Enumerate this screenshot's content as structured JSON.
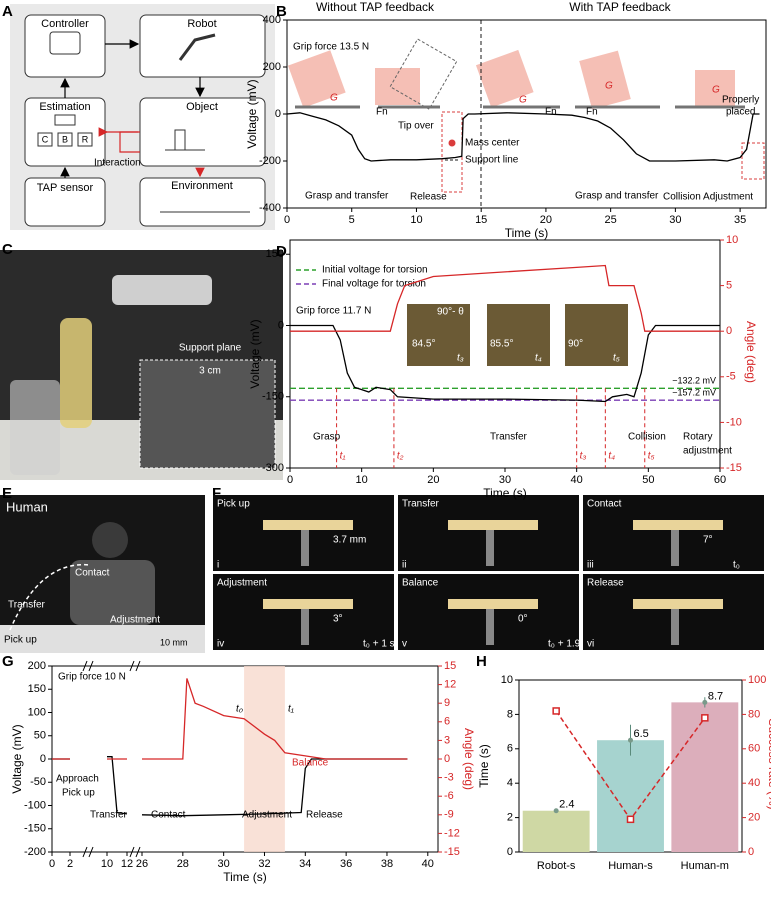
{
  "panel_labels": [
    "A",
    "B",
    "C",
    "D",
    "E",
    "F",
    "G",
    "H"
  ],
  "diagram": {
    "nodes": [
      "Controller",
      "Robot",
      "Estimation",
      "Object",
      "TAP sensor",
      "Environment"
    ],
    "sub_nodes": [
      "C",
      "B",
      "R"
    ],
    "edge_label": "Interaction"
  },
  "photos": {
    "C": [
      "Support plane",
      "3 cm"
    ],
    "E": [
      "Human",
      "Contact",
      "Transfer",
      "Adjustment",
      "Pick up",
      "10 mm"
    ],
    "F": [
      {
        "title": "Pick up",
        "numeral": "i",
        "notes": [
          "3.7 mm"
        ]
      },
      {
        "title": "Transfer",
        "numeral": "ii",
        "notes": []
      },
      {
        "title": "Contact",
        "numeral": "iii",
        "notes": [
          "7°",
          "t₀"
        ]
      },
      {
        "title": "Adjustment",
        "numeral": "iv",
        "notes": [
          "3°",
          "t₀ + 1 s"
        ]
      },
      {
        "title": "Balance",
        "numeral": "v",
        "notes": [
          "0°",
          "t₀ + 1.9 s"
        ]
      },
      {
        "title": "Release",
        "numeral": "vi",
        "notes": []
      }
    ]
  },
  "chart_data": [
    {
      "type": "line",
      "headers": [
        "Without TAP feedback",
        "With TAP feedback"
      ],
      "xlabel": "Time (s)",
      "ylabel": "Voltage (mV)",
      "xlim": [
        0,
        37
      ],
      "ylim": [
        -400,
        400
      ],
      "xticks": [
        0,
        5,
        10,
        15,
        20,
        25,
        30,
        35
      ],
      "yticks": [
        -400,
        -200,
        0,
        200,
        400
      ],
      "series": [
        {
          "color": "#000000",
          "x": [
            0,
            1,
            2,
            3,
            4,
            5,
            5.5,
            6,
            6.5,
            8,
            10,
            12,
            13,
            13.5,
            13.6,
            14,
            14.5,
            17,
            20,
            22,
            23,
            24,
            25,
            26,
            27,
            28,
            30,
            33,
            34,
            35,
            35.5,
            35.8,
            36,
            36.5
          ],
          "values": [
            0,
            5,
            -10,
            -25,
            -50,
            -90,
            -150,
            -190,
            -200,
            -195,
            -195,
            -190,
            -185,
            -180,
            -20,
            0,
            0,
            5,
            0,
            -5,
            -15,
            -30,
            -60,
            -110,
            -170,
            -200,
            -200,
            -195,
            -200,
            -185,
            -150,
            -60,
            0,
            0
          ]
        }
      ],
      "annotations": [
        "Grip force 13.5 N",
        "G",
        "Fn",
        "Tip over",
        "Mass center",
        "Support line",
        "Grasp and transfer",
        "Release",
        "G",
        "Fn",
        "Fn",
        "G",
        "G",
        "Properly",
        "placed",
        "Grasp and transfer",
        "Collision Adjustment"
      ]
    },
    {
      "type": "line",
      "xlabel": "Time (s)",
      "ylabel": "Voltage (mV)",
      "y2label": "Angle (deg)",
      "y2color": "#d62728",
      "xlim": [
        0,
        60
      ],
      "ylim": [
        -300,
        180
      ],
      "y2lim": [
        -15,
        10
      ],
      "xticks": [
        0,
        10,
        20,
        30,
        40,
        50,
        60
      ],
      "yticks": [
        -300,
        -150,
        0,
        150
      ],
      "y2ticks": [
        -15,
        -10,
        -5,
        0,
        5,
        10
      ],
      "series": [
        {
          "color": "#000000",
          "x": [
            0,
            6,
            7,
            8,
            9,
            10,
            11,
            12,
            14,
            15,
            20,
            30,
            40,
            44,
            45,
            47,
            48,
            49,
            50,
            51,
            60
          ],
          "values": [
            0,
            0,
            -30,
            -100,
            -130,
            -135,
            -140,
            -130,
            -135,
            -150,
            -155,
            -155,
            -157,
            -160,
            -150,
            -145,
            -150,
            -100,
            -20,
            0,
            0
          ]
        },
        {
          "color": "#d62728",
          "axis": "y2",
          "x": [
            0,
            14,
            15,
            16,
            20,
            30,
            40,
            44,
            44.5,
            48,
            49,
            49.5,
            60
          ],
          "values": [
            0,
            0,
            3,
            5,
            6,
            6.5,
            7,
            7.2,
            5,
            5,
            2,
            0,
            0
          ]
        }
      ],
      "hlines": [
        {
          "name": "Initial voltage for torsion",
          "color": "#2ca02c",
          "value": -132.2,
          "label": "−132.2 mV"
        },
        {
          "name": "Final voltage for torsion",
          "color": "#7b3fb5",
          "value": -157.2,
          "label": "−157.2 mV"
        }
      ],
      "events": [
        {
          "label": "t₁",
          "x": 6.5
        },
        {
          "label": "t₂",
          "x": 14.5
        },
        {
          "label": "t₃",
          "x": 40
        },
        {
          "label": "t₄",
          "x": 44
        },
        {
          "label": "t₅",
          "x": 49.5
        }
      ],
      "annotations": [
        "Grip force 11.7 N",
        "90°- θ",
        "84.5°",
        "85.5°",
        "90°",
        "t₃",
        "t₄",
        "t₅",
        "Grasp",
        "Transfer",
        "Collision",
        "Rotary",
        "adjustment"
      ]
    },
    {
      "type": "line",
      "xlabel": "Time (s)",
      "ylabel": "Voltage (mV)",
      "y2label": "Angle (deg)",
      "y2color": "#d62728",
      "xlim": [
        0,
        40.5
      ],
      "xbreaks": [
        [
          2,
          10
        ],
        [
          12,
          26
        ]
      ],
      "ylim": [
        -200,
        200
      ],
      "y2lim": [
        -15,
        15
      ],
      "xticks": [
        0,
        2,
        10,
        12,
        26,
        28,
        30,
        32,
        34,
        36,
        38,
        40
      ],
      "yticks": [
        -200,
        -150,
        -100,
        -50,
        0,
        50,
        100,
        150,
        200
      ],
      "y2ticks": [
        -15,
        -12,
        -9,
        -6,
        -3,
        0,
        3,
        6,
        9,
        12,
        15
      ],
      "highlight": [
        31,
        33
      ],
      "series": [
        {
          "color": "#000000",
          "x": [
            0,
            2,
            6,
            10,
            10.5,
            11,
            12,
            19,
            26,
            28,
            30,
            32,
            33.8,
            34,
            34.3,
            39
          ],
          "values": [
            0,
            0,
            null,
            5,
            5,
            -115,
            -118,
            null,
            -120,
            -122,
            -120,
            -118,
            -115,
            -20,
            0,
            0
          ]
        },
        {
          "color": "#d62728",
          "axis": "y2",
          "x": [
            0,
            2,
            6,
            10,
            12,
            19,
            26,
            28,
            28.2,
            28.6,
            29,
            30,
            31,
            32,
            32.5,
            33,
            34,
            35,
            39
          ],
          "values": [
            0,
            0,
            null,
            0,
            0,
            null,
            0,
            0,
            13,
            9,
            8.5,
            7,
            6.5,
            4,
            3,
            1,
            0.5,
            0,
            0
          ]
        }
      ],
      "annotations": [
        "Grip force 10 N",
        "t₀",
        "t₁",
        "Balance",
        "Approach",
        "Pick up",
        "Transfer",
        "Contact",
        "Adjustment",
        "Release"
      ]
    },
    {
      "type": "bar",
      "ylabel": "Time (s)",
      "y2label": "Success rate (%)",
      "y2color": "#d62728",
      "categories": [
        "Robot-s",
        "Human-s",
        "Human-m"
      ],
      "values": [
        2.4,
        6.5,
        8.7
      ],
      "errors": [
        0.1,
        0.9,
        0.3
      ],
      "colors": [
        "#cfd8a4",
        "#a6d3cf",
        "#dcaebb"
      ],
      "ylim": [
        0,
        10
      ],
      "yticks": [
        0,
        2,
        4,
        6,
        8,
        10
      ],
      "y2lim": [
        0,
        100
      ],
      "y2ticks": [
        0,
        20,
        40,
        60,
        80,
        100
      ],
      "line": {
        "color": "#d62728",
        "axis": "y2",
        "values": [
          82,
          19,
          78
        ]
      }
    }
  ]
}
